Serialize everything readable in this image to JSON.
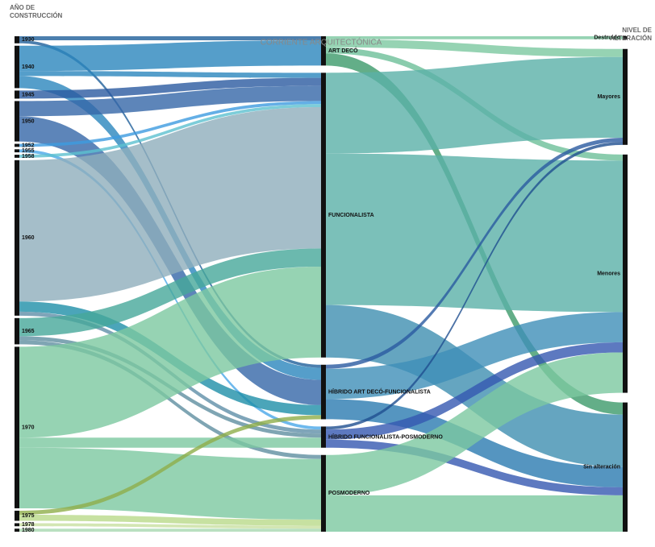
{
  "chart_data": {
    "type": "sankey",
    "columns": [
      {
        "title": [
          "AÑO DE",
          "CONSTRUCCIÓN"
        ],
        "nodes": [
          "1930",
          "1940",
          "1945",
          "1950",
          "1952",
          "1955",
          "1958",
          "1960",
          "1965",
          "1970",
          "1975",
          "1978",
          "1980"
        ]
      },
      {
        "title": [
          "CORRIENTE ARQUITECTÓNICA"
        ],
        "nodes": [
          "ART DECÓ",
          "FUNCIONALISTA",
          "HÍBRIDO ART DECÓ-FUNCIONALISTA",
          "HÍBRIDO FUNCIONALISTA-POSMODERNO",
          "POSMODERNO"
        ]
      },
      {
        "title": [
          "NIVEL DE",
          "ALTERACIÓN"
        ],
        "nodes": [
          "Destruido",
          "Mayores",
          "Menores",
          "Sin alteración"
        ]
      }
    ],
    "links": [
      {
        "source": "1930",
        "target": "ART DECÓ",
        "value": 4,
        "color": "#1f5f9a"
      },
      {
        "source": "1930",
        "target": "HÍBRIDO ART DECÓ-FUNCIONALISTA",
        "value": 3,
        "color": "#1f5f9a"
      },
      {
        "source": "1940",
        "target": "ART DECÓ",
        "value": 25,
        "color": "#2a86bd"
      },
      {
        "source": "1940",
        "target": "FUNCIONALISTA",
        "value": 5,
        "color": "#2a86bd"
      },
      {
        "source": "1940",
        "target": "HÍBRIDO ART DECÓ-FUNCIONALISTA",
        "value": 12,
        "color": "#2a86bd"
      },
      {
        "source": "1945",
        "target": "FUNCIONALISTA",
        "value": 8,
        "color": "#2b5aa0"
      },
      {
        "source": "1950",
        "target": "FUNCIONALISTA",
        "value": 15,
        "color": "#3466a8"
      },
      {
        "source": "1950",
        "target": "HÍBRIDO ART DECÓ-FUNCIONALISTA",
        "value": 25,
        "color": "#3466a8"
      },
      {
        "source": "1952",
        "target": "FUNCIONALISTA",
        "value": 3,
        "color": "#3d9be0"
      },
      {
        "source": "1955",
        "target": "HÍBRIDO FUNCIONALISTA-POSMODERNO",
        "value": 3,
        "color": "#4aa8e8"
      },
      {
        "source": "1958",
        "target": "FUNCIONALISTA",
        "value": 3,
        "color": "#5cc0d0"
      },
      {
        "source": "1960",
        "target": "FUNCIONALISTA",
        "value": 140,
        "color": "#8eaebc"
      },
      {
        "source": "1960",
        "target": "HÍBRIDO ART DECÓ-FUNCIONALISTA",
        "value": 10,
        "color": "#1e8fa8"
      },
      {
        "source": "1960",
        "target": "HÍBRIDO FUNCIONALISTA-POSMODERNO",
        "value": 4,
        "color": "#5f8fa8"
      },
      {
        "source": "1965",
        "target": "FUNCIONALISTA",
        "value": 18,
        "color": "#46a89a"
      },
      {
        "source": "1965",
        "target": "HÍBRIDO FUNCIONALISTA-POSMODERNO",
        "value": 4,
        "color": "#5f8fa0"
      },
      {
        "source": "1965",
        "target": "POSMODERNO",
        "value": 4,
        "color": "#5f8fa0"
      },
      {
        "source": "1970",
        "target": "FUNCIONALISTA",
        "value": 90,
        "color": "#7cc8a0"
      },
      {
        "source": "1970",
        "target": "HÍBRIDO FUNCIONALISTA-POSMODERNO",
        "value": 10,
        "color": "#7cc8a0"
      },
      {
        "source": "1970",
        "target": "POSMODERNO",
        "value": 60,
        "color": "#7cc8a0"
      },
      {
        "source": "1975",
        "target": "HÍBRIDO ART DECÓ-FUNCIONALISTA",
        "value": 4,
        "color": "#8fae4a"
      },
      {
        "source": "1975",
        "target": "POSMODERNO",
        "value": 6,
        "color": "#b9d98a"
      },
      {
        "source": "1978",
        "target": "POSMODERNO",
        "value": 3,
        "color": "#c8e0a0"
      },
      {
        "source": "1980",
        "target": "POSMODERNO",
        "value": 3,
        "color": "#a8d8b0"
      },
      {
        "source": "ART DECÓ",
        "target": "Destruido",
        "value": 3,
        "color": "#7cc8a0"
      },
      {
        "source": "ART DECÓ",
        "target": "Mayores",
        "value": 8,
        "color": "#7cc8a0"
      },
      {
        "source": "ART DECÓ",
        "target": "Menores",
        "value": 6,
        "color": "#6dbf98"
      },
      {
        "source": "ART DECÓ",
        "target": "Sin alteración",
        "value": 12,
        "color": "#3c9a6a"
      },
      {
        "source": "FUNCIONALISTA",
        "target": "Mayores",
        "value": 80,
        "color": "#5ab0a8"
      },
      {
        "source": "FUNCIONALISTA",
        "target": "Menores",
        "value": 150,
        "color": "#5ab0a8"
      },
      {
        "source": "FUNCIONALISTA",
        "target": "Sin alteración",
        "value": 52,
        "color": "#3f8fb0"
      },
      {
        "source": "HÍBRIDO ART DECÓ-FUNCIONALISTA",
        "target": "Mayores",
        "value": 4,
        "color": "#2b5aa0"
      },
      {
        "source": "HÍBRIDO ART DECÓ-FUNCIONALISTA",
        "target": "Menores",
        "value": 30,
        "color": "#3f8fb8"
      },
      {
        "source": "HÍBRIDO ART DECÓ-FUNCIONALISTA",
        "target": "Sin alteración",
        "value": 20,
        "color": "#2a7ab0"
      },
      {
        "source": "HÍBRIDO FUNCIONALISTA-POSMODERNO",
        "target": "Mayores",
        "value": 3,
        "color": "#1f4f90"
      },
      {
        "source": "HÍBRIDO FUNCIONALISTA-POSMODERNO",
        "target": "Menores",
        "value": 10,
        "color": "#3558b0"
      },
      {
        "source": "HÍBRIDO FUNCIONALISTA-POSMODERNO",
        "target": "Sin alteración",
        "value": 8,
        "color": "#3558b0"
      },
      {
        "source": "POSMODERNO",
        "target": "Menores",
        "value": 40,
        "color": "#7cc8a0"
      },
      {
        "source": "POSMODERNO",
        "target": "Sin alteración",
        "value": 36,
        "color": "#7cc8a0"
      }
    ]
  }
}
